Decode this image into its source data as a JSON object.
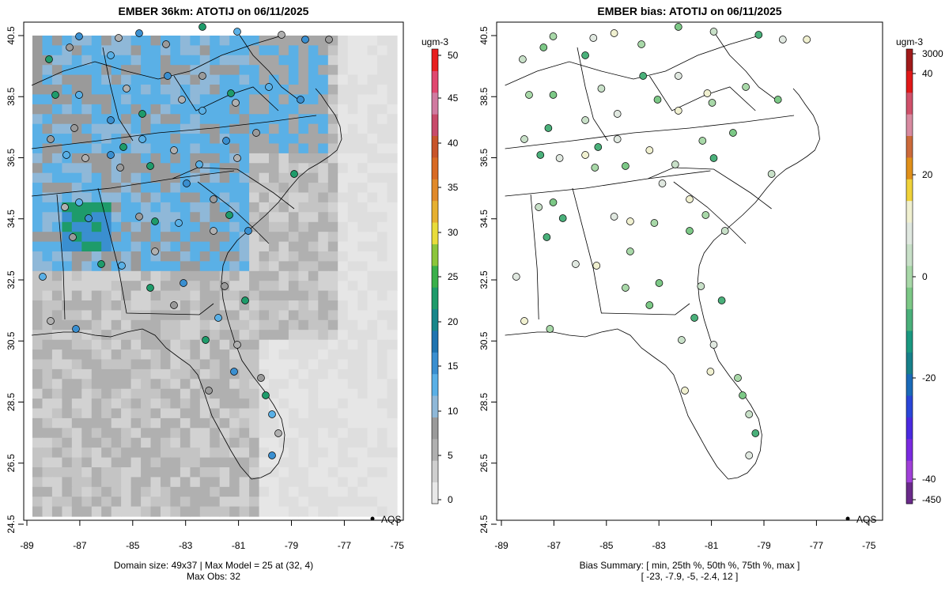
{
  "left_panel": {
    "title": "EMBER 36km: ATOTIJ on 06/11/2025",
    "colorbar_unit": "ugm-3",
    "colorbar_ticks": [
      "0",
      "5",
      "10",
      "15",
      "20",
      "25",
      "30",
      "35",
      "40",
      "45",
      "50"
    ],
    "footer_line1": "Domain size: 49x37 | Max Model = 25 at (32, 4)",
    "footer_line2": "Max Obs: 32",
    "legend_label": "AQS",
    "colorbar_colors": [
      "#e8e8e8",
      "#cfcfcf",
      "#b0b0b0",
      "#9a9a9a",
      "#8fb8d8",
      "#5ab0e6",
      "#3a8fd0",
      "#1f74b0",
      "#17868a",
      "#1e9b6a",
      "#3ab04a",
      "#8cc63a",
      "#e8dc3a",
      "#e6b030",
      "#e08a2a",
      "#d86a24",
      "#c8542a",
      "#c84a6a",
      "#d07aa0",
      "#e04870",
      "#e81f1f"
    ]
  },
  "right_panel": {
    "title": "EMBER bias: ATOTIJ on 06/11/2025",
    "colorbar_unit": "ugm-3",
    "colorbar_ticks": [
      "3000",
      "40",
      "20",
      "0",
      "-20",
      "-40",
      "-450"
    ],
    "footer_line1": "Bias Summary: [ min, 25th %, 50th %, 75th %, max ]",
    "footer_line2": "[ -23,   -7.9,   -5,   -2.4,   12 ]",
    "legend_label": "AQS",
    "colorbar_colors": [
      "#a01a1a",
      "#e01818",
      "#d0506a",
      "#d88aa0",
      "#cc6a3a",
      "#e0901a",
      "#f0d23a",
      "#f0f0d0",
      "#e0e8e0",
      "#c8e0c8",
      "#a8d8a8",
      "#7cc886",
      "#4ab07a",
      "#1a9880",
      "#17808a",
      "#1a6ab8",
      "#2a46d8",
      "#4a2ae0",
      "#7a2ae0",
      "#a040d8",
      "#6a2a8a"
    ]
  },
  "map": {
    "lon_ticks": [
      "-89",
      "-87",
      "-85",
      "-83",
      "-81",
      "-79",
      "-77",
      "-75"
    ],
    "lat_ticks": [
      "40.5",
      "38.5",
      "36.5",
      "34.5",
      "32.5",
      "30.5",
      "28.5",
      "26.5",
      "24.5"
    ]
  }
}
